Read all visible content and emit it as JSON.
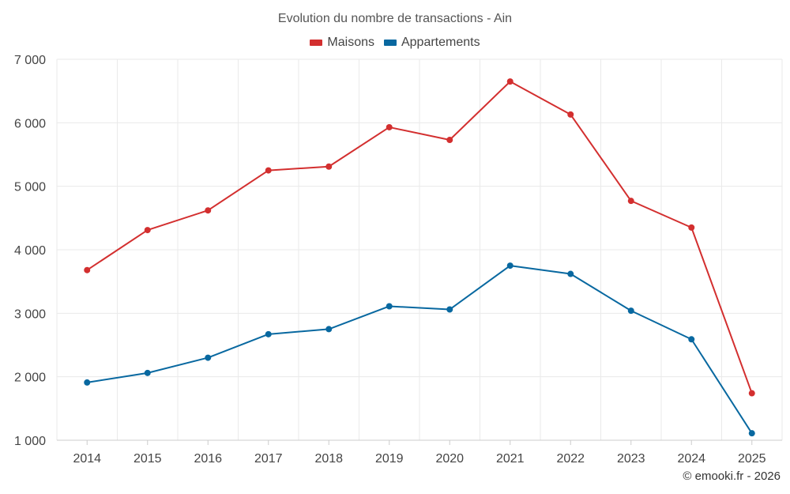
{
  "chart_data": {
    "type": "line",
    "title": "Evolution du nombre de transactions - Ain",
    "categories": [
      "2014",
      "2015",
      "2016",
      "2017",
      "2018",
      "2019",
      "2020",
      "2021",
      "2022",
      "2023",
      "2024",
      "2025"
    ],
    "series": [
      {
        "name": "Maisons",
        "color": "#d32f2f",
        "values": [
          3680,
          4310,
          4620,
          5250,
          5310,
          5930,
          5730,
          6650,
          6130,
          4770,
          4350,
          1740
        ]
      },
      {
        "name": "Appartements",
        "color": "#0868a0",
        "values": [
          1910,
          2060,
          2300,
          2670,
          2750,
          3110,
          3060,
          3750,
          3620,
          3040,
          2590,
          1110
        ]
      }
    ],
    "xlabel": "",
    "ylabel": "",
    "ylim": [
      1000,
      7000
    ],
    "yticks": [
      1000,
      2000,
      3000,
      4000,
      5000,
      6000,
      7000
    ],
    "ytick_labels": [
      "1 000",
      "2 000",
      "3 000",
      "4 000",
      "5 000",
      "6 000",
      "7 000"
    ],
    "grid": true,
    "legend_position": "top-center"
  },
  "credit": "© emooki.fr - 2026"
}
